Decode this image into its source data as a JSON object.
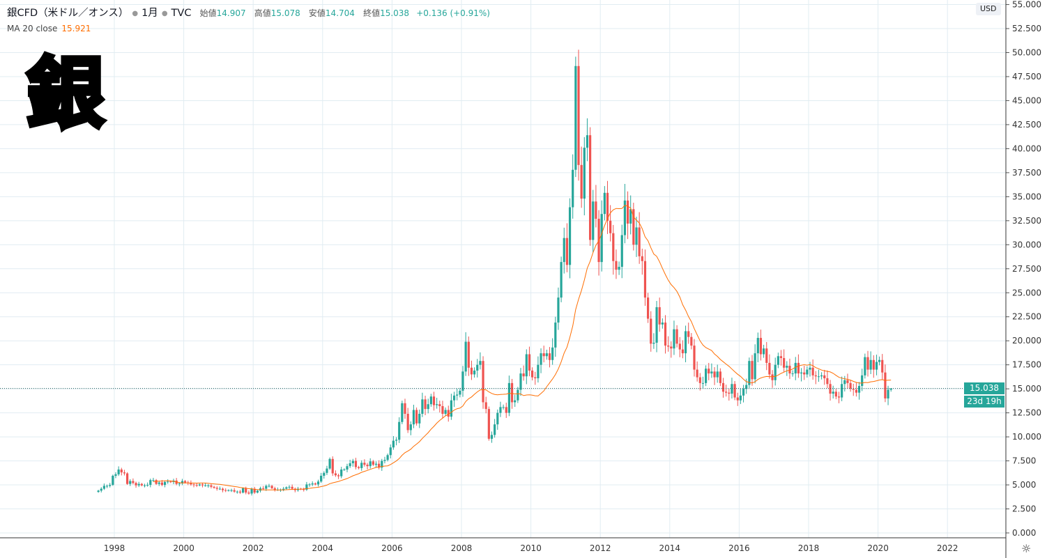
{
  "header": {
    "symbol": "銀CFD（米ドル／オンス）",
    "interval": "1月",
    "source": "TVC",
    "open_label": "始値",
    "open": "14.907",
    "high_label": "高値",
    "high": "15.078",
    "low_label": "安値",
    "low": "14.704",
    "close_label": "終値",
    "close": "15.038",
    "change": "+0.136 (+0.91%)"
  },
  "indicator": {
    "label": "MA 20 close",
    "value": "15.921"
  },
  "overlay_text": "銀",
  "currency": "USD",
  "price_label": "15.038",
  "countdown": "23d 19h",
  "colors": {
    "up": "#26a69a",
    "down": "#ef5350",
    "ma": "#ff6d00",
    "grid": "#e1ecf2"
  },
  "chart_data": {
    "type": "candlestick",
    "title": "銀CFD（米ドル／オンス） 1月 TVC",
    "start_month": "1997-07",
    "interval": "monthly",
    "last_candle": {
      "open": 14.907,
      "high": 15.078,
      "low": 14.704,
      "close": 15.038
    },
    "closes": [
      4.4,
      4.6,
      4.9,
      4.9,
      5.0,
      5.95,
      6.1,
      6.6,
      6.3,
      6.2,
      5.1,
      5.4,
      5.2,
      4.95,
      5.1,
      4.95,
      4.95,
      5.0,
      5.5,
      5.5,
      5.1,
      5.25,
      5.0,
      5.3,
      5.35,
      5.3,
      5.45,
      5.1,
      5.15,
      5.4,
      5.25,
      5.2,
      5.05,
      5.0,
      4.95,
      5.05,
      4.95,
      4.95,
      4.95,
      4.8,
      4.7,
      4.6,
      4.6,
      4.45,
      4.4,
      4.45,
      4.45,
      4.3,
      4.3,
      4.2,
      4.65,
      4.2,
      4.1,
      4.6,
      4.2,
      4.4,
      4.65,
      4.6,
      4.9,
      4.9,
      4.65,
      4.5,
      4.5,
      4.5,
      4.6,
      4.75,
      4.8,
      4.6,
      4.45,
      4.6,
      4.55,
      4.5,
      5.05,
      5.05,
      5.15,
      5.05,
      5.35,
      5.95,
      6.25,
      6.7,
      7.7,
      6.2,
      6.0,
      5.9,
      6.6,
      6.6,
      6.95,
      7.25,
      7.5,
      6.85,
      6.75,
      7.3,
      7.1,
      6.95,
      7.45,
      7.1,
      7.2,
      6.8,
      7.5,
      7.6,
      8.1,
      8.9,
      9.6,
      9.7,
      11.55,
      13.5,
      12.4,
      10.7,
      11.3,
      12.8,
      11.4,
      12.4,
      13.9,
      12.9,
      13.4,
      14.2,
      13.3,
      13.4,
      13.2,
      12.4,
      12.8,
      12.1,
      13.8,
      14.3,
      14.4,
      14.8,
      16.8,
      19.9,
      17.2,
      16.5,
      16.9,
      17.5,
      17.9,
      13.6,
      12.9,
      9.8,
      10.2,
      11.3,
      12.5,
      13.1,
      13.1,
      12.5,
      15.6,
      13.6,
      13.8,
      14.9,
      16.6,
      16.3,
      18.6,
      16.9,
      16.2,
      16.1,
      17.5,
      18.7,
      18.4,
      18.7,
      18.0,
      19.3,
      21.9,
      24.5,
      28.2,
      30.7,
      27.9,
      33.9,
      37.8,
      48.6,
      38.3,
      34.8,
      40.1,
      41.4,
      30.5,
      34.5,
      32.7,
      28.2,
      33.2,
      35.4,
      32.5,
      31.2,
      28.3,
      27.4,
      27.7,
      31.0,
      34.6,
      32.2,
      33.7,
      30.0,
      31.8,
      28.8,
      28.3,
      24.5,
      22.3,
      19.7,
      19.8,
      23.5,
      21.7,
      21.9,
      19.5,
      19.4,
      19.2,
      21.2,
      19.7,
      19.1,
      18.7,
      21.0,
      20.4,
      19.5,
      17.0,
      16.2,
      15.6,
      15.6,
      17.1,
      16.6,
      16.8,
      16.2,
      16.8,
      15.6,
      14.7,
      14.6,
      14.5,
      15.5,
      14.1,
      13.8,
      14.3,
      15.0,
      15.4,
      17.9,
      16.0,
      18.7,
      20.3,
      18.6,
      19.2,
      17.7,
      16.5,
      15.9,
      17.5,
      18.4,
      18.2,
      17.2,
      17.4,
      16.6,
      16.6,
      17.7,
      16.6,
      16.7,
      16.5,
      17.0,
      17.2,
      16.4,
      16.3,
      16.3,
      16.4,
      16.1,
      15.5,
      14.5,
      14.7,
      14.2,
      14.1,
      15.5,
      15.9,
      15.6,
      15.0,
      14.9,
      14.6,
      15.3,
      16.4,
      18.3,
      17.0,
      18.0,
      17.0,
      17.8,
      18.0,
      16.7,
      14.0,
      14.907,
      15.038
    ],
    "ma_period": 20,
    "ylim": [
      0,
      55
    ],
    "y_ticks": [
      "0.000",
      "2.500",
      "5.000",
      "7.500",
      "10.000",
      "12.500",
      "15.000",
      "17.500",
      "20.000",
      "22.500",
      "25.000",
      "27.500",
      "30.000",
      "32.500",
      "35.000",
      "37.500",
      "40.000",
      "42.500",
      "45.000",
      "47.500",
      "50.000",
      "52.500",
      "55.000"
    ],
    "x_ticks": [
      "1998",
      "2000",
      "2002",
      "2004",
      "2006",
      "2008",
      "2010",
      "2012",
      "2014",
      "2016",
      "2018",
      "2020",
      "2022"
    ],
    "grid": true
  }
}
